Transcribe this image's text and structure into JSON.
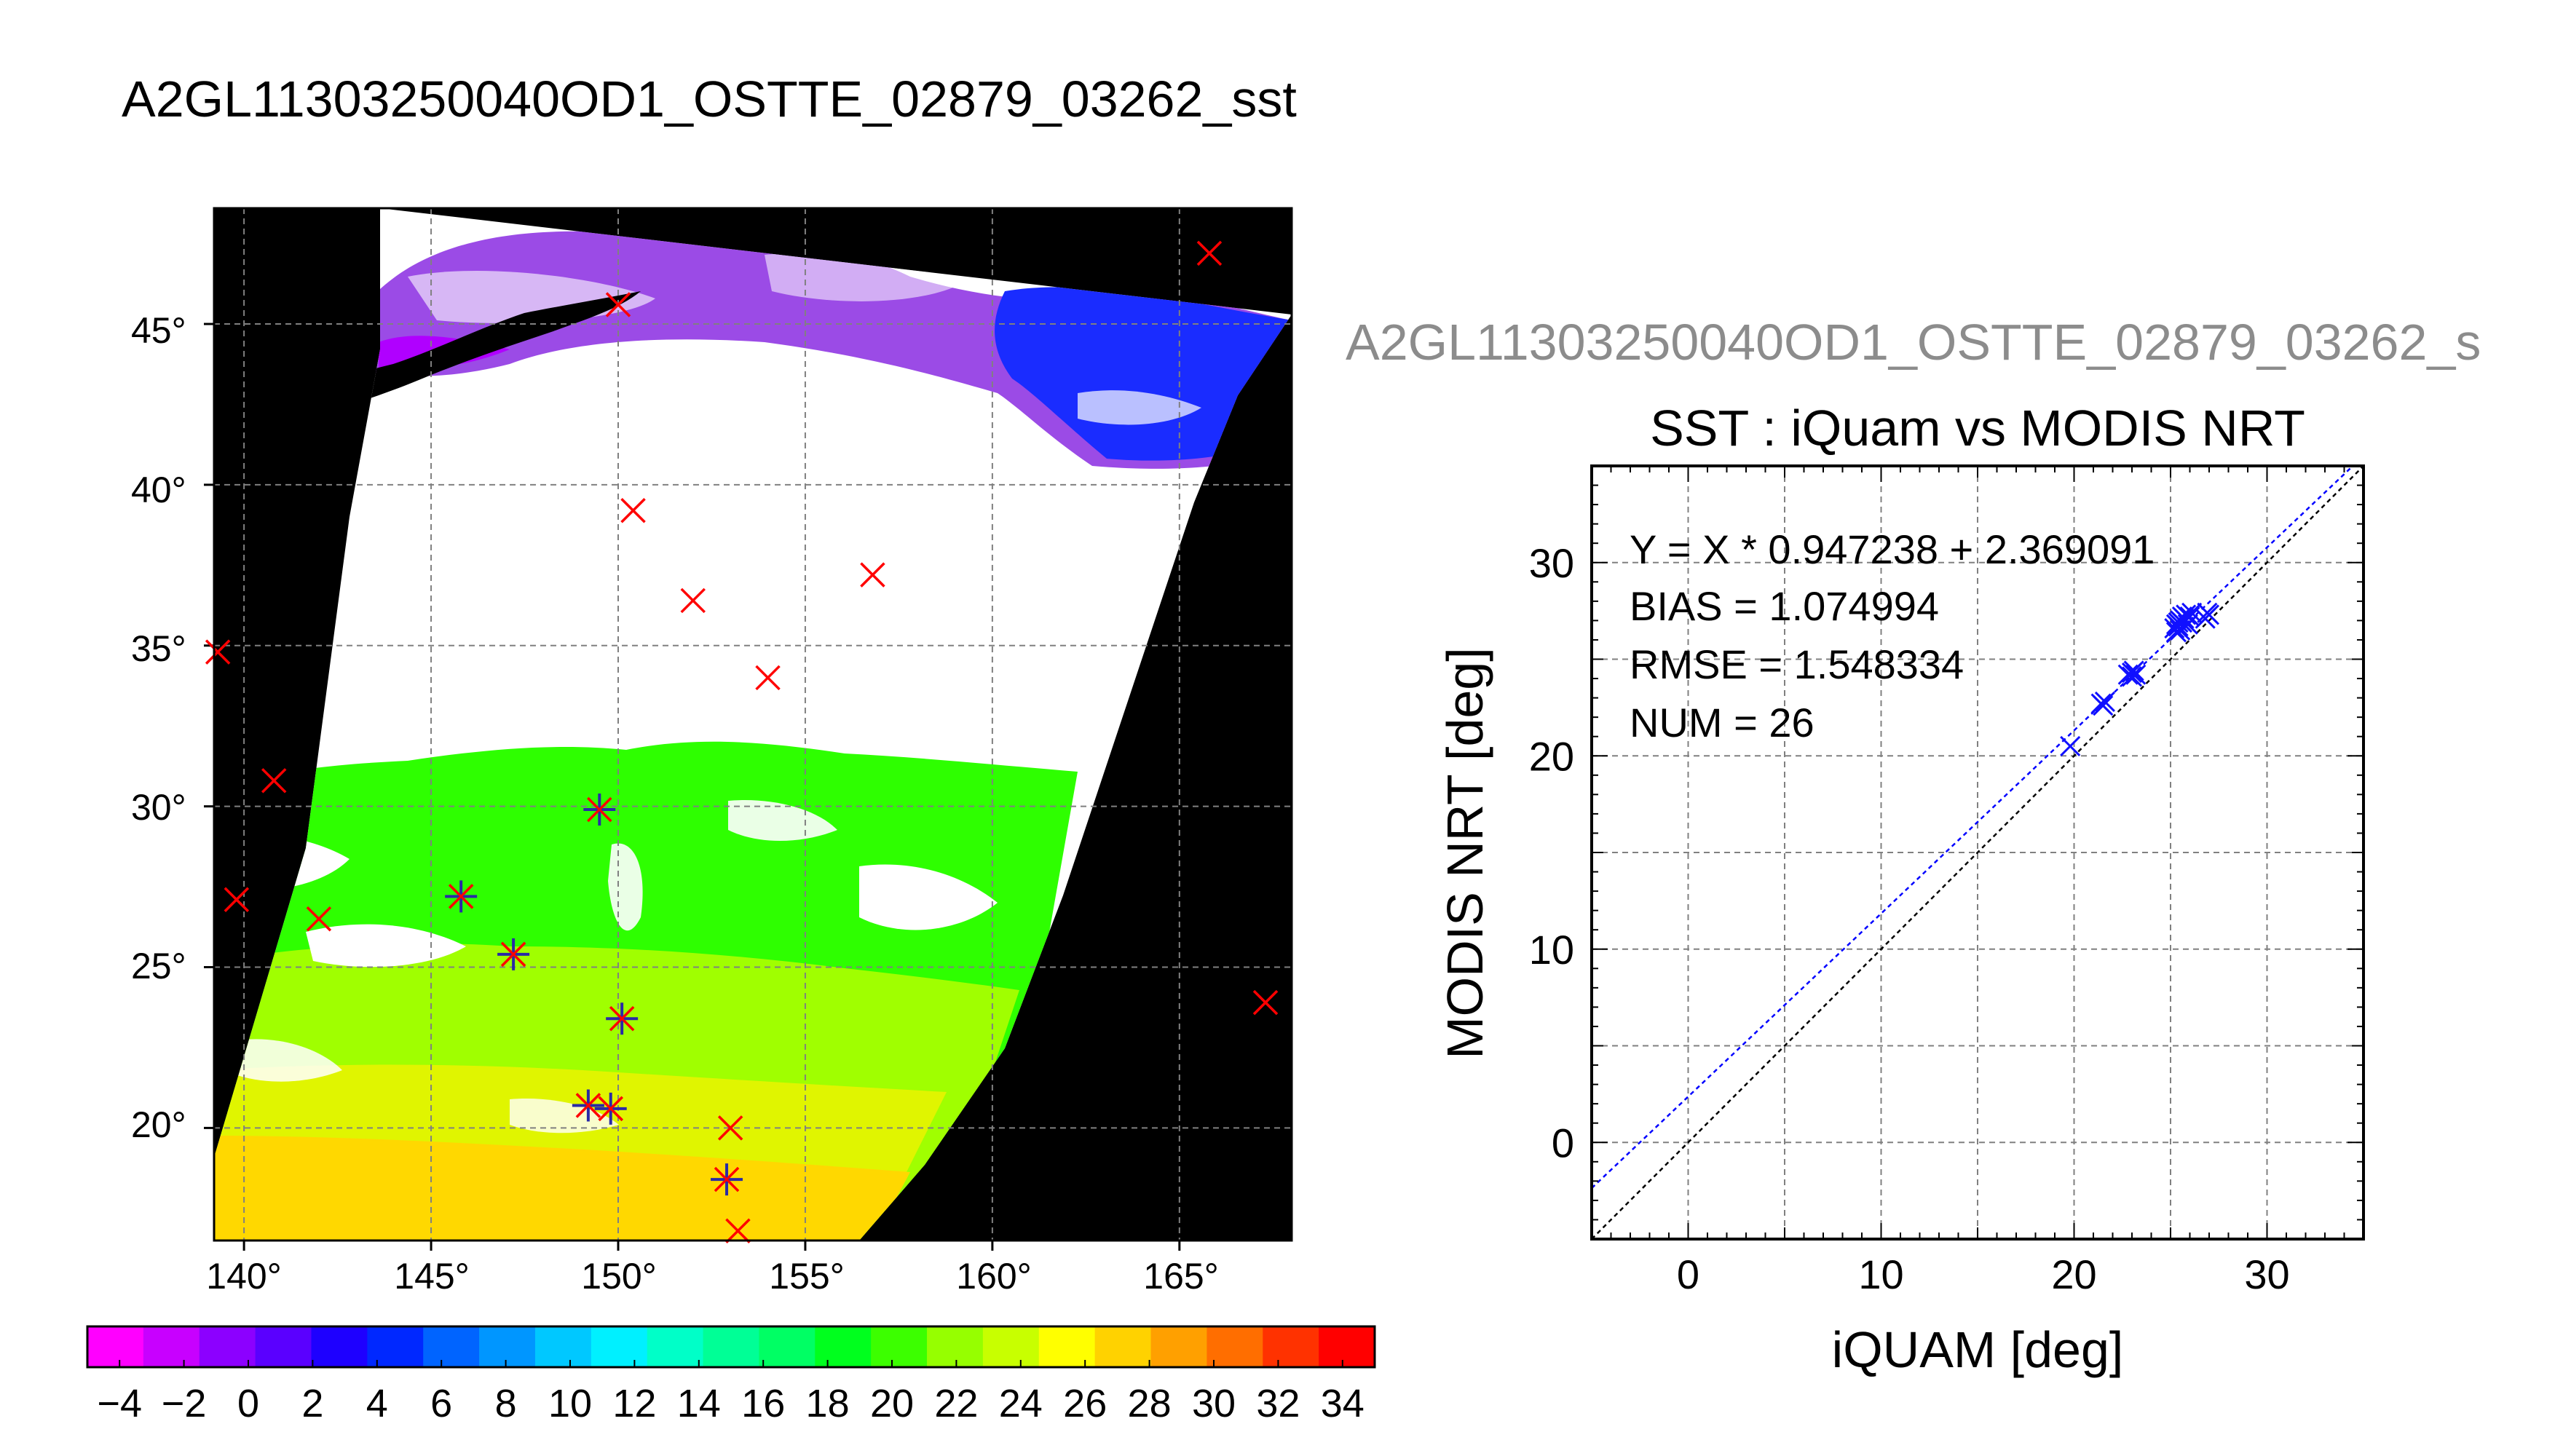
{
  "page_title": "A2GL11303250040OD1_OSTTE_02879_03262_sst",
  "map": {
    "lat_labels": [
      "45°",
      "40°",
      "35°",
      "30°",
      "25°",
      "20°"
    ],
    "lon_labels": [
      "140°",
      "145°",
      "150°",
      "155°",
      "160°",
      "165°"
    ],
    "colors": {
      "background": "#000000",
      "cloud": "#ffffff",
      "grid": "#808080",
      "iquam_marker": "#ff0000",
      "modis_marker": "#2a2aa6"
    }
  },
  "colorbar": {
    "ticks": [
      "−4",
      "−2",
      "0",
      "2",
      "4",
      "6",
      "8",
      "10",
      "12",
      "14",
      "16",
      "18",
      "20",
      "22",
      "24",
      "26",
      "28",
      "30",
      "32",
      "34"
    ],
    "colors": [
      "#ff00ff",
      "#c800ff",
      "#8c00ff",
      "#5a00ff",
      "#1e00ff",
      "#0028ff",
      "#0064ff",
      "#0096ff",
      "#00c8ff",
      "#00f0ff",
      "#00ffc8",
      "#00ff96",
      "#00ff64",
      "#00ff1e",
      "#3cff00",
      "#96ff00",
      "#c8ff00",
      "#ffff00",
      "#ffd200",
      "#ffa000",
      "#ff6e00",
      "#ff3200",
      "#ff0000"
    ]
  },
  "scatter": {
    "top_label": "A2GL11303250040OD1_OSTTE_02879_03262_s",
    "title": "SST : iQuam vs MODIS NRT",
    "xlabel": "iQUAM [deg]",
    "ylabel": "MODIS NRT [deg]",
    "xticks": [
      "0",
      "10",
      "20",
      "30"
    ],
    "yticks": [
      "0",
      "10",
      "20",
      "30"
    ],
    "stats": {
      "equation": "Y = X * 0.947238 + 2.369091",
      "bias": "BIAS = 1.074994",
      "rmse": "RMSE = 1.548334",
      "num": "NUM = 26"
    },
    "colors": {
      "points": "#1010ff",
      "fit_line": "#0000ff",
      "identity_line": "#000000",
      "grid": "#808080"
    }
  },
  "chart_data": [
    {
      "type": "heatmap",
      "title": "A2GL11303250040OD1_OSTTE_02879_03262_sst",
      "xlabel": "",
      "ylabel": "",
      "xlim": [
        139.2,
        168
      ],
      "ylim": [
        16.5,
        48.6
      ],
      "xticks": [
        140,
        145,
        150,
        155,
        160,
        165
      ],
      "yticks": [
        20,
        25,
        30,
        35,
        40,
        45
      ],
      "colorbar": {
        "min": -5,
        "max": 35,
        "step": 2
      },
      "grid": true,
      "iquam_points": [
        {
          "lon": 165.8,
          "lat": 47.2
        },
        {
          "lon": 150.0,
          "lat": 45.6
        },
        {
          "lon": 150.4,
          "lat": 39.2
        },
        {
          "lon": 152.0,
          "lat": 36.4
        },
        {
          "lon": 156.8,
          "lat": 37.2
        },
        {
          "lon": 139.3,
          "lat": 34.8
        },
        {
          "lon": 154.0,
          "lat": 34.0
        },
        {
          "lon": 140.8,
          "lat": 30.8
        },
        {
          "lon": 139.8,
          "lat": 27.1
        },
        {
          "lon": 142.0,
          "lat": 26.5
        },
        {
          "lon": 149.5,
          "lat": 29.9
        },
        {
          "lon": 145.8,
          "lat": 27.2
        },
        {
          "lon": 147.2,
          "lat": 25.4
        },
        {
          "lon": 150.1,
          "lat": 23.4
        },
        {
          "lon": 149.2,
          "lat": 20.7
        },
        {
          "lon": 149.8,
          "lat": 20.6
        },
        {
          "lon": 153.0,
          "lat": 20.0
        },
        {
          "lon": 152.9,
          "lat": 18.4
        },
        {
          "lon": 167.3,
          "lat": 23.9
        },
        {
          "lon": 153.2,
          "lat": 16.8
        }
      ],
      "matchup_points": [
        {
          "lon": 149.5,
          "lat": 29.9
        },
        {
          "lon": 145.8,
          "lat": 27.2
        },
        {
          "lon": 147.2,
          "lat": 25.4
        },
        {
          "lon": 150.1,
          "lat": 23.4
        },
        {
          "lon": 149.2,
          "lat": 20.7
        },
        {
          "lon": 149.8,
          "lat": 20.6
        },
        {
          "lon": 152.9,
          "lat": 18.4
        }
      ]
    },
    {
      "type": "scatter",
      "title": "SST : iQuam vs MODIS NRT",
      "xlabel": "iQUAM [deg]",
      "ylabel": "MODIS NRT [deg]",
      "xlim": [
        -5,
        35
      ],
      "ylim": [
        -5,
        35
      ],
      "grid": true,
      "fit": {
        "slope": 0.947238,
        "intercept": 2.369091
      },
      "points": [
        {
          "x": 19.8,
          "y": 20.5
        },
        {
          "x": 21.5,
          "y": 22.6
        },
        {
          "x": 21.6,
          "y": 22.8
        },
        {
          "x": 22.8,
          "y": 24.2
        },
        {
          "x": 23.0,
          "y": 24.3
        },
        {
          "x": 23.1,
          "y": 24.4
        },
        {
          "x": 23.2,
          "y": 24.2
        },
        {
          "x": 25.2,
          "y": 26.6
        },
        {
          "x": 25.3,
          "y": 26.8
        },
        {
          "x": 25.4,
          "y": 26.7
        },
        {
          "x": 25.5,
          "y": 27.0
        },
        {
          "x": 25.6,
          "y": 26.9
        },
        {
          "x": 25.7,
          "y": 27.1
        },
        {
          "x": 25.8,
          "y": 27.3
        },
        {
          "x": 26.0,
          "y": 27.2
        },
        {
          "x": 26.1,
          "y": 27.4
        },
        {
          "x": 25.9,
          "y": 26.8
        },
        {
          "x": 25.5,
          "y": 26.5
        },
        {
          "x": 25.3,
          "y": 26.4
        },
        {
          "x": 26.8,
          "y": 27.1
        },
        {
          "x": 27.0,
          "y": 27.3
        },
        {
          "x": 26.9,
          "y": 27.4
        },
        {
          "x": 25.6,
          "y": 27.2
        },
        {
          "x": 25.4,
          "y": 26.9
        },
        {
          "x": 23.0,
          "y": 24.1
        },
        {
          "x": 21.4,
          "y": 22.7
        }
      ]
    }
  ]
}
